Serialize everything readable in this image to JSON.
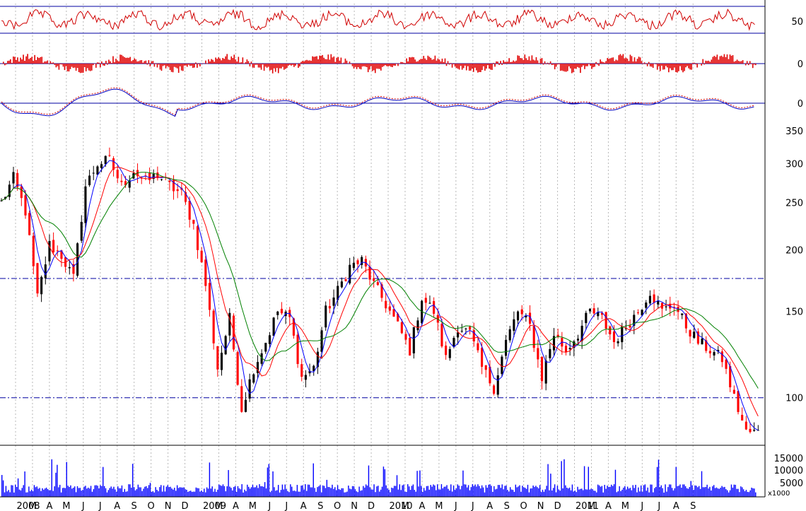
{
  "chart_data": {
    "type": "candlestick",
    "scale": "log",
    "period": {
      "start": "2008-01",
      "end": "2011-09"
    },
    "month_labels": [
      "2008",
      "M",
      "A",
      "M",
      "J",
      "J",
      "A",
      "S",
      "O",
      "N",
      "D",
      "2009",
      "M",
      "A",
      "M",
      "J",
      "J",
      "A",
      "S",
      "O",
      "N",
      "D",
      "2010",
      "M",
      "A",
      "M",
      "J",
      "J",
      "A",
      "S",
      "O",
      "N",
      "D",
      "2011",
      "M",
      "A",
      "M",
      "J",
      "J",
      "A",
      "S"
    ],
    "price_axis": {
      "ticks": [
        100,
        150,
        200,
        250,
        300,
        350
      ],
      "range": [
        80,
        350
      ]
    },
    "reference_lines": [
      100,
      175
    ],
    "price_anchors": [
      [
        0,
        250
      ],
      [
        3,
        280
      ],
      [
        6,
        240
      ],
      [
        9,
        160
      ],
      [
        12,
        205
      ],
      [
        15,
        195
      ],
      [
        18,
        175
      ],
      [
        21,
        270
      ],
      [
        24,
        300
      ],
      [
        27,
        305
      ],
      [
        30,
        270
      ],
      [
        33,
        290
      ],
      [
        36,
        275
      ],
      [
        39,
        285
      ],
      [
        42,
        270
      ],
      [
        45,
        260
      ],
      [
        48,
        225
      ],
      [
        51,
        170
      ],
      [
        54,
        115
      ],
      [
        57,
        145
      ],
      [
        60,
        95
      ],
      [
        63,
        115
      ],
      [
        66,
        130
      ],
      [
        69,
        150
      ],
      [
        72,
        145
      ],
      [
        75,
        110
      ],
      [
        78,
        115
      ],
      [
        81,
        150
      ],
      [
        84,
        165
      ],
      [
        87,
        185
      ],
      [
        90,
        190
      ],
      [
        93,
        170
      ],
      [
        96,
        155
      ],
      [
        99,
        140
      ],
      [
        102,
        125
      ],
      [
        105,
        160
      ],
      [
        108,
        150
      ],
      [
        111,
        120
      ],
      [
        114,
        140
      ],
      [
        117,
        135
      ],
      [
        120,
        115
      ],
      [
        123,
        105
      ],
      [
        126,
        130
      ],
      [
        129,
        150
      ],
      [
        132,
        140
      ],
      [
        135,
        110
      ],
      [
        138,
        135
      ],
      [
        141,
        125
      ],
      [
        144,
        135
      ],
      [
        147,
        150
      ],
      [
        150,
        145
      ],
      [
        153,
        130
      ],
      [
        156,
        140
      ],
      [
        159,
        150
      ],
      [
        162,
        165
      ],
      [
        165,
        150
      ],
      [
        168,
        155
      ],
      [
        171,
        140
      ],
      [
        174,
        130
      ],
      [
        177,
        125
      ],
      [
        180,
        120
      ],
      [
        183,
        100
      ],
      [
        186,
        85
      ],
      [
        189,
        85
      ]
    ],
    "panels": [
      {
        "name": "rsi",
        "ticks": [
          "50"
        ]
      },
      {
        "name": "momentum",
        "ticks": [
          "0"
        ]
      },
      {
        "name": "macd",
        "ticks": [
          "0"
        ]
      },
      {
        "name": "volume",
        "ticks": [
          "15000",
          "10000",
          "5000"
        ],
        "unit": "x1000"
      }
    ],
    "colors": {
      "up_candle": "#000000",
      "down_candle": "#ff0000",
      "ma_short": "#0000ff",
      "ma_mid": "#ff0000",
      "ma_long": "#008000",
      "panel_line": "#0000c0",
      "grid": "#b8b8b8"
    }
  }
}
